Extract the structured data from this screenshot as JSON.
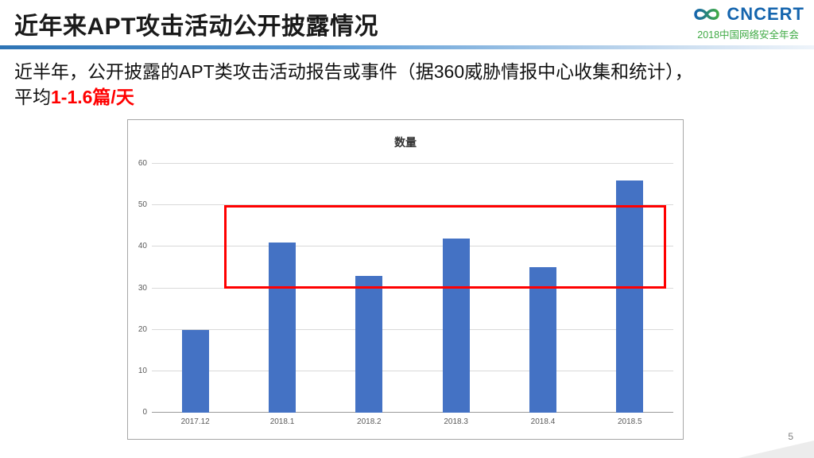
{
  "slide": {
    "title": "近年来APT攻击活动公开披露情况",
    "page_number": "5"
  },
  "logo": {
    "name": "CNCERT",
    "subtitle": "2018中国网络安全年会"
  },
  "body": {
    "line1": "近半年，公开披露的APT类攻击活动报告或事件（据360威胁情报中心收集和统计），",
    "line2_prefix": "平均",
    "line2_highlight": "1-1.6篇/天"
  },
  "chart_data": {
    "type": "bar",
    "title": "数量",
    "categories": [
      "2017.12",
      "2018.1",
      "2018.2",
      "2018.3",
      "2018.4",
      "2018.5"
    ],
    "values": [
      20,
      41,
      33,
      42,
      35,
      56
    ],
    "ylim": [
      0,
      60
    ],
    "yticks": [
      0,
      10,
      20,
      30,
      40,
      50,
      60
    ],
    "grid": true,
    "legend": false,
    "bar_color": "#4472c4",
    "annotation": {
      "type": "highlight-box",
      "color": "#ff0000",
      "y_range": [
        30,
        50
      ]
    }
  },
  "colors": {
    "accent_red": "#ff0000",
    "logo_blue": "#1565ae",
    "logo_green": "#3faa44",
    "bar_blue": "#4472c4"
  }
}
